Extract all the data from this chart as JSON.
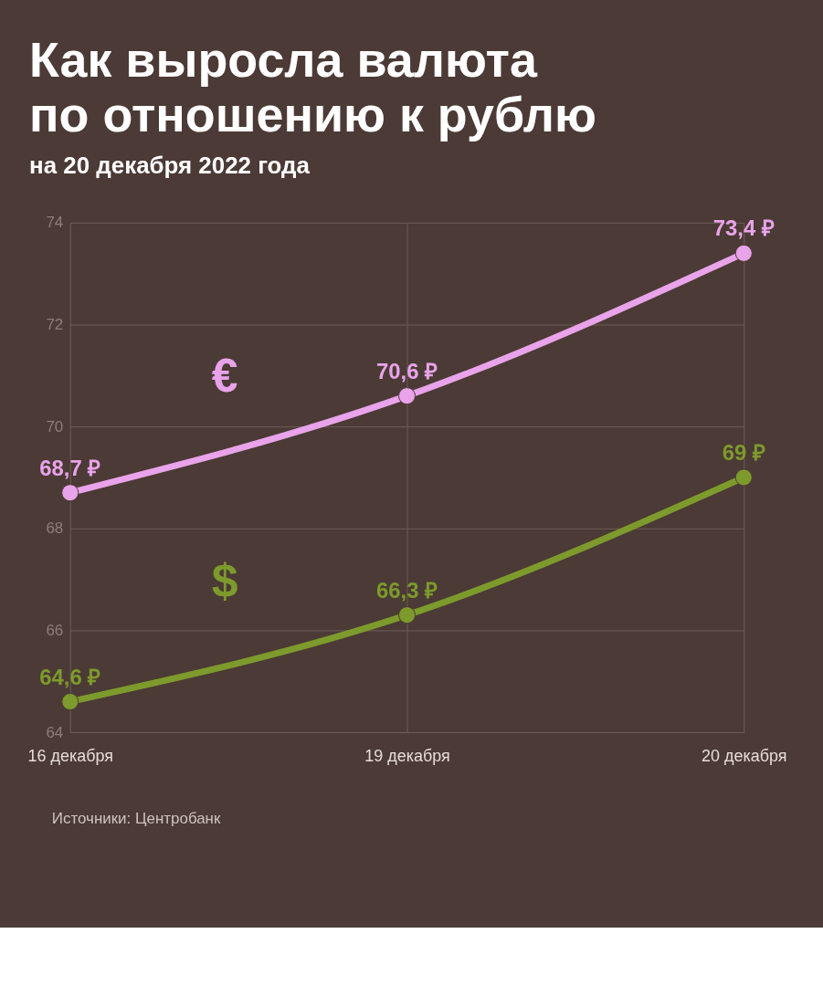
{
  "chart_data": {
    "type": "line",
    "title": "Как выросла валюта\nпо отношению к рублю",
    "subtitle": "на 20 декабря 2022 года",
    "categories": [
      "16 декабря",
      "19 декабря",
      "20 декабря"
    ],
    "series": [
      {
        "name": "€",
        "color": "#e9a3ea",
        "values": [
          68.7,
          70.6,
          73.4
        ],
        "value_labels": [
          "68,7 ₽",
          "70,6 ₽",
          "73,4 ₽"
        ]
      },
      {
        "name": "$",
        "color": "#7d9a2c",
        "values": [
          64.6,
          66.3,
          69
        ],
        "value_labels": [
          "64,6 ₽",
          "66,3 ₽",
          "69 ₽"
        ]
      }
    ],
    "ylim": [
      64,
      74
    ],
    "yticks": [
      64,
      66,
      68,
      70,
      72,
      74
    ],
    "grid": true,
    "marker": "circle",
    "line_style": "solid",
    "annotations": [
      "Источники: Центробанк"
    ]
  }
}
